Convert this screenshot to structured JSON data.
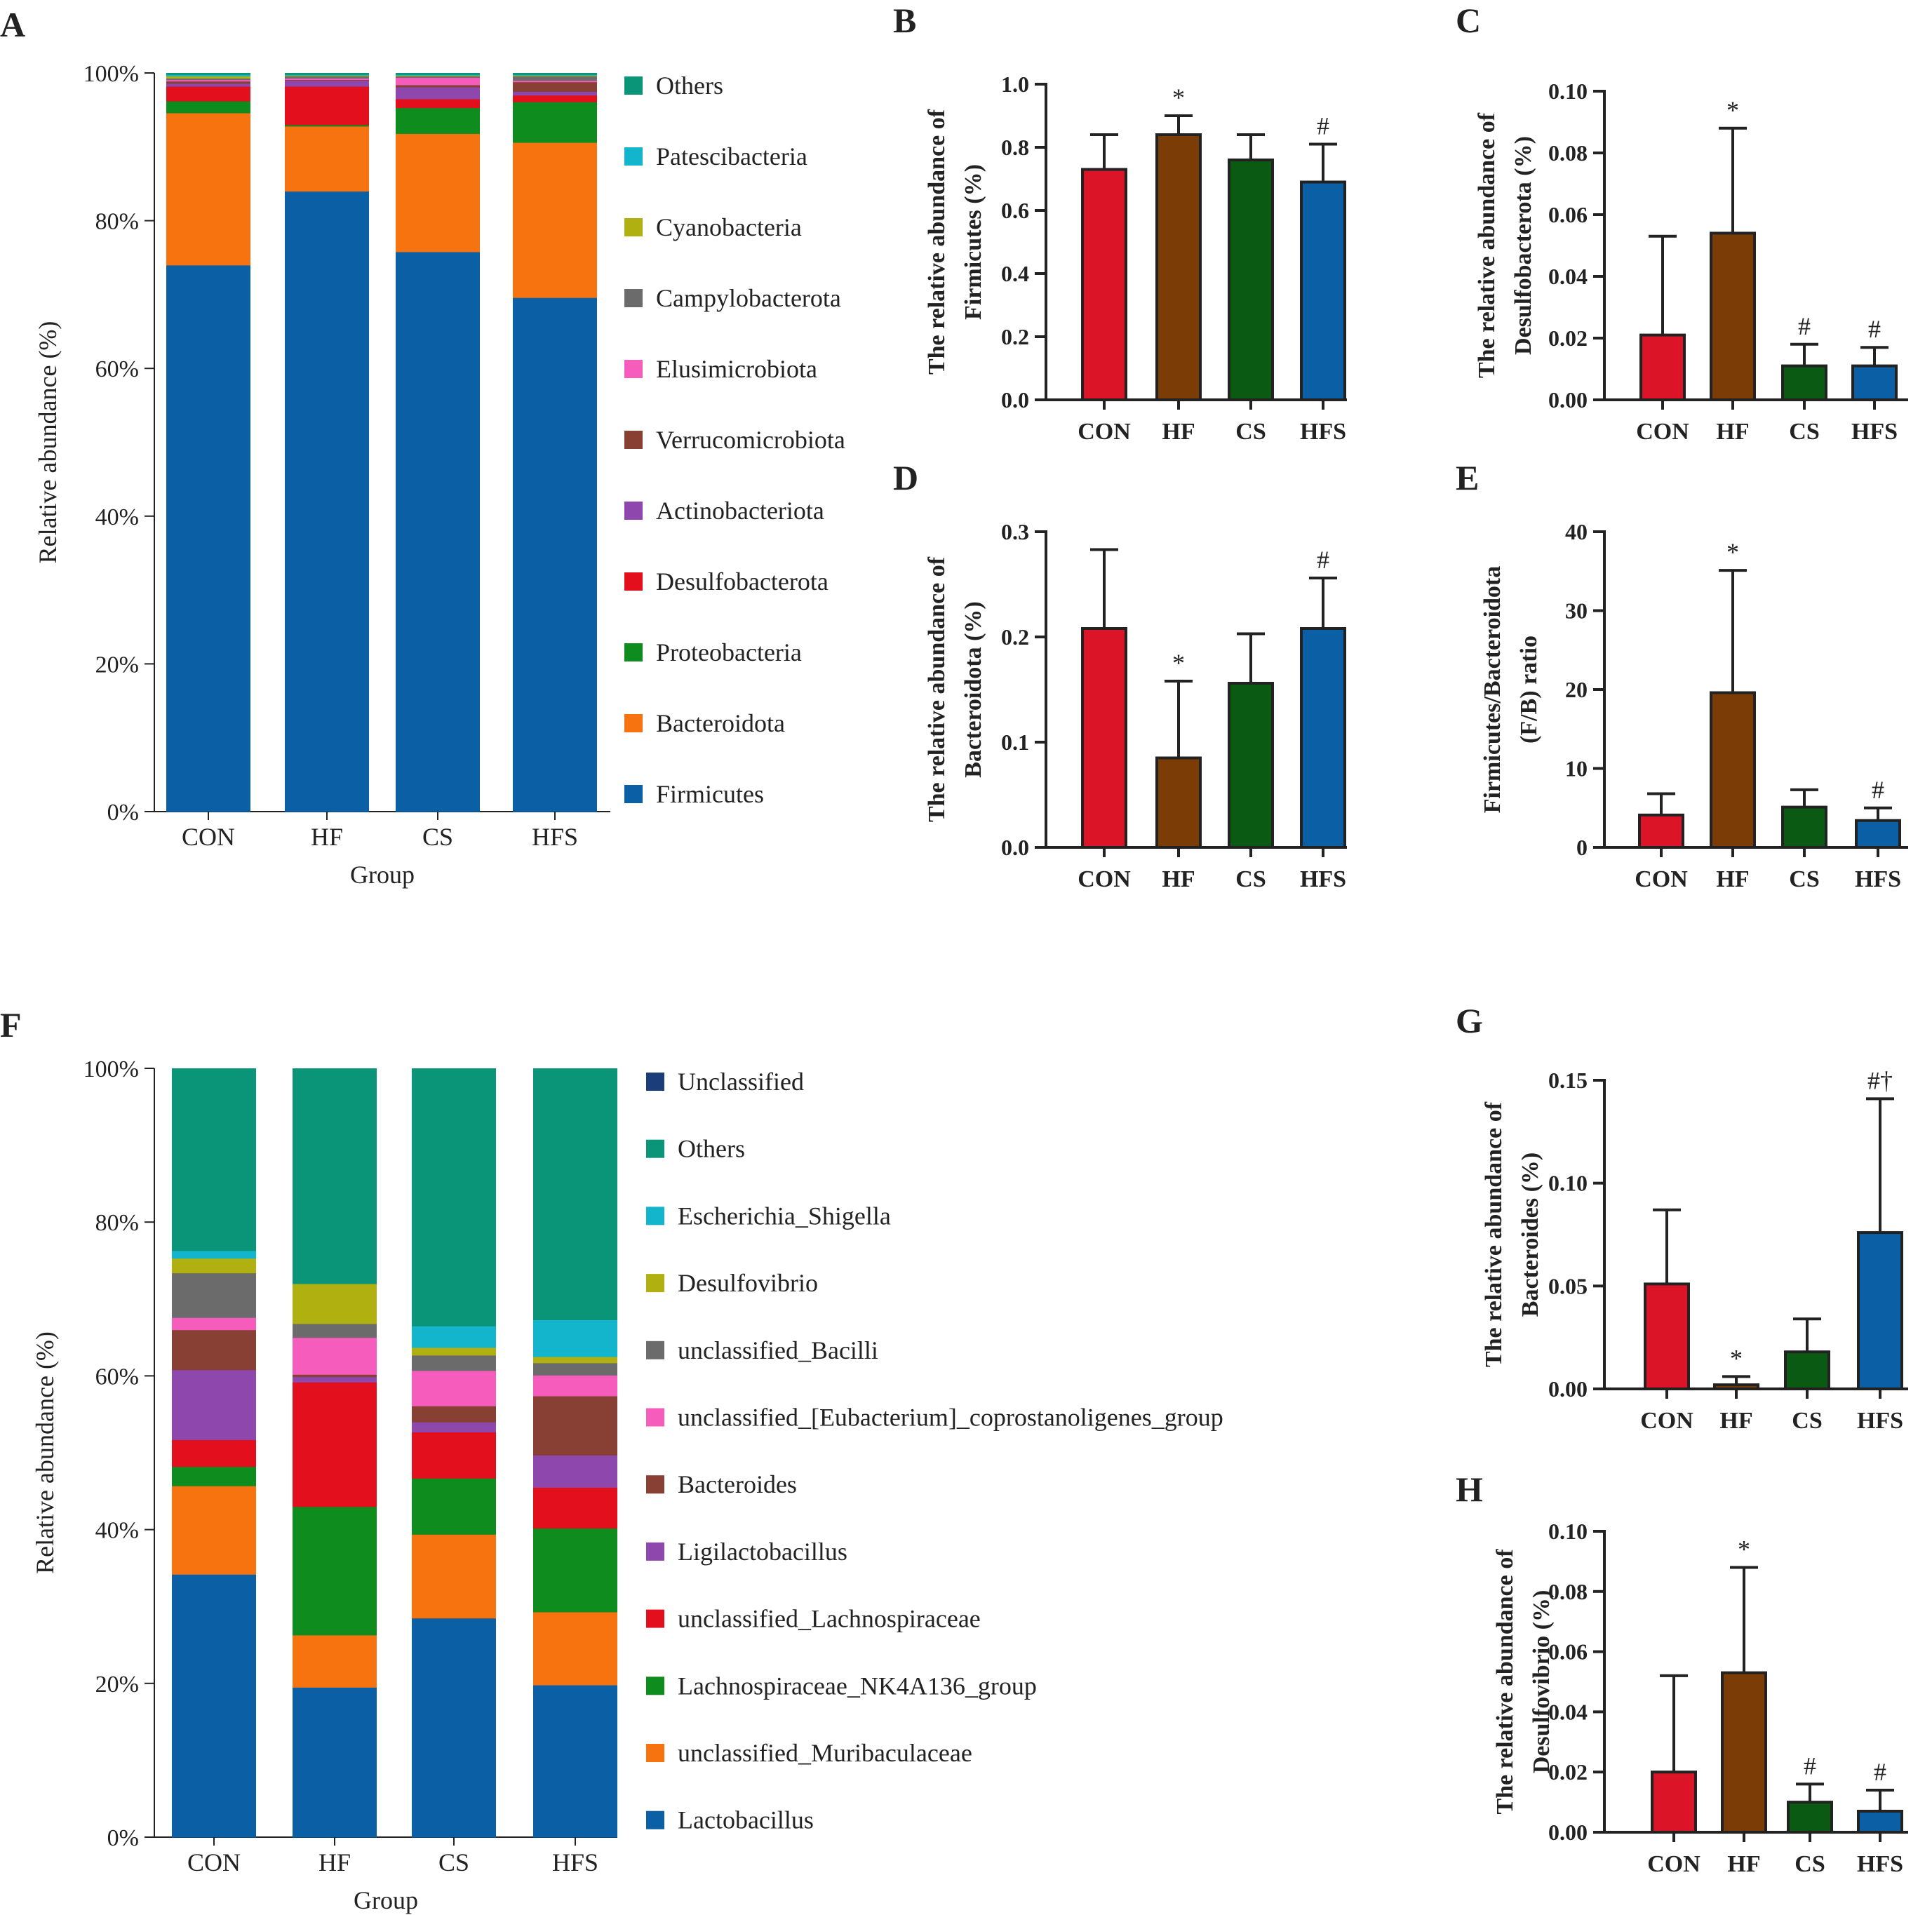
{
  "figure": {
    "colors": {
      "CON": "#dc1428",
      "HF": "#7b3c06",
      "CS": "#0a5a14",
      "HFS": "#0a5fa5",
      "axis": "#222222"
    }
  },
  "chart_data": [
    {
      "panel": "A",
      "type": "bar",
      "stacked": true,
      "categories": [
        "CON",
        "HF",
        "CS",
        "HFS"
      ],
      "xlabel": "Group",
      "ylabel": "Relative abundance (%)",
      "ylim": [
        0,
        100
      ],
      "yticks": [
        "0%",
        "20%",
        "40%",
        "60%",
        "80%",
        "100%"
      ],
      "legend_position": "right",
      "series": [
        {
          "name": "Firmicutes",
          "color": "#0a5fa5",
          "values": [
            74.0,
            84.0,
            75.8,
            69.6
          ]
        },
        {
          "name": "Bacteroidota",
          "color": "#f77310",
          "values": [
            20.6,
            8.8,
            16.0,
            21.0
          ]
        },
        {
          "name": "Proteobacteria",
          "color": "#0f8c1e",
          "values": [
            1.6,
            0.2,
            3.5,
            5.5
          ]
        },
        {
          "name": "Desulfobacterota",
          "color": "#e30f1c",
          "values": [
            2.0,
            5.2,
            1.2,
            0.9
          ]
        },
        {
          "name": "Actinobacteriota",
          "color": "#8e47ad",
          "values": [
            0.4,
            0.8,
            1.6,
            0.5
          ]
        },
        {
          "name": "Verrucomicrobiota",
          "color": "#874033",
          "values": [
            0.3,
            0.1,
            0.3,
            1.3
          ]
        },
        {
          "name": "Elusimicrobiota",
          "color": "#f55cbc",
          "values": [
            0.2,
            0.2,
            1.0,
            0.2
          ]
        },
        {
          "name": "Campylobacterota",
          "color": "#6b6b6b",
          "values": [
            0.2,
            0.3,
            0.2,
            0.6
          ]
        },
        {
          "name": "Cyanobacteria",
          "color": "#b0b010",
          "values": [
            0.3,
            0.1,
            0.1,
            0.1
          ]
        },
        {
          "name": "Patescibacteria",
          "color": "#13b5cc",
          "values": [
            0.2,
            0.1,
            0.1,
            0.1
          ]
        },
        {
          "name": "Others",
          "color": "#0a9478",
          "values": [
            0.2,
            0.2,
            0.2,
            0.2
          ]
        }
      ]
    },
    {
      "panel": "B",
      "type": "bar",
      "categories": [
        "CON",
        "HF",
        "CS",
        "HFS"
      ],
      "values": [
        0.73,
        0.84,
        0.76,
        0.69
      ],
      "errors": [
        0.11,
        0.06,
        0.08,
        0.12
      ],
      "annotations": [
        "",
        "*",
        "",
        "#"
      ],
      "ylabel_lines": [
        "The relative abundance of",
        "Firmicutes  (%)"
      ],
      "ylim": [
        0,
        1.0
      ],
      "yticks": [
        0,
        0.2,
        0.4,
        0.6,
        0.8,
        1.0
      ],
      "ytick_labels": [
        "0.0",
        "0.2",
        "0.4",
        "0.6",
        "0.8",
        "1.0"
      ]
    },
    {
      "panel": "C",
      "type": "bar",
      "categories": [
        "CON",
        "HF",
        "CS",
        "HFS"
      ],
      "values": [
        0.021,
        0.054,
        0.011,
        0.011
      ],
      "errors": [
        0.032,
        0.034,
        0.007,
        0.006
      ],
      "annotations": [
        "",
        "*",
        "#",
        "#"
      ],
      "ylabel_lines": [
        "The relative abundance of",
        "Desulfobacterota  (%)"
      ],
      "ylim": [
        0,
        0.1
      ],
      "yticks": [
        0,
        0.02,
        0.04,
        0.06,
        0.08,
        0.1
      ],
      "ytick_labels": [
        "0.00",
        "0.02",
        "0.04",
        "0.06",
        "0.08",
        "0.10"
      ]
    },
    {
      "panel": "D",
      "type": "bar",
      "categories": [
        "CON",
        "HF",
        "CS",
        "HFS"
      ],
      "values": [
        0.208,
        0.085,
        0.156,
        0.208
      ],
      "errors": [
        0.075,
        0.073,
        0.047,
        0.048
      ],
      "annotations": [
        "",
        "*",
        "",
        "#"
      ],
      "ylabel_lines": [
        "The relative abundance of",
        "Bacteroidota  (%)"
      ],
      "ylim": [
        0,
        0.3
      ],
      "yticks": [
        0,
        0.1,
        0.2,
        0.3
      ],
      "ytick_labels": [
        "0.0",
        "0.1",
        "0.2",
        "0.3"
      ]
    },
    {
      "panel": "E",
      "type": "bar",
      "categories": [
        "CON",
        "HF",
        "CS",
        "HFS"
      ],
      "values": [
        4.1,
        19.6,
        5.1,
        3.4
      ],
      "errors": [
        2.7,
        15.5,
        2.2,
        1.6
      ],
      "annotations": [
        "",
        "*",
        "",
        "#"
      ],
      "ylabel_lines": [
        "Firmicutes/Bacteroidota",
        "(F/B) ratio"
      ],
      "ylim": [
        0,
        40
      ],
      "yticks": [
        0,
        10,
        20,
        30,
        40
      ],
      "ytick_labels": [
        "0",
        "10",
        "20",
        "30",
        "40"
      ]
    },
    {
      "panel": "F",
      "type": "bar",
      "stacked": true,
      "categories": [
        "CON",
        "HF",
        "CS",
        "HFS"
      ],
      "xlabel": "Group",
      "ylabel": "Relative abundance (%)",
      "ylim": [
        0,
        100
      ],
      "yticks": [
        "0%",
        "20%",
        "40%",
        "60%",
        "80%",
        "100%"
      ],
      "legend_position": "right",
      "series": [
        {
          "name": "Lactobacillus",
          "color": "#0a5fa5",
          "values": [
            34.2,
            19.5,
            28.5,
            19.8
          ]
        },
        {
          "name": "unclassified_Muribaculaceae",
          "color": "#f77310",
          "values": [
            11.5,
            6.8,
            10.9,
            9.5
          ]
        },
        {
          "name": "Lachnospiraceae_NK4A136_group",
          "color": "#0f8c1e",
          "values": [
            2.5,
            16.7,
            7.3,
            10.9
          ]
        },
        {
          "name": "unclassified_Lachnospiraceae",
          "color": "#e30f1c",
          "values": [
            3.5,
            16.2,
            6.0,
            5.3
          ]
        },
        {
          "name": "Ligilactobacillus",
          "color": "#8e47ad",
          "values": [
            9.1,
            0.7,
            1.3,
            4.2
          ]
        },
        {
          "name": "Bacteroides",
          "color": "#874033",
          "values": [
            5.2,
            0.3,
            2.1,
            7.7
          ]
        },
        {
          "name": "unclassified_[Eubacterium]_coprostanoligenes_group",
          "color": "#f55cbc",
          "values": [
            1.6,
            4.8,
            4.6,
            2.7
          ]
        },
        {
          "name": "unclassified_Bacilli",
          "color": "#6b6b6b",
          "values": [
            5.8,
            1.8,
            2.0,
            1.6
          ]
        },
        {
          "name": "Desulfovibrio",
          "color": "#b0b010",
          "values": [
            1.9,
            5.2,
            1.0,
            0.8
          ]
        },
        {
          "name": "Escherichia_Shigella",
          "color": "#13b5cc",
          "values": [
            1.0,
            0.0,
            2.8,
            4.8
          ]
        },
        {
          "name": "Others",
          "color": "#0a9478",
          "values": [
            23.7,
            28.0,
            33.5,
            32.7
          ]
        },
        {
          "name": "Unclassified",
          "color": "#1b3d7a",
          "values": [
            0.0,
            0.0,
            0.0,
            0.0
          ]
        }
      ]
    },
    {
      "panel": "G",
      "type": "bar",
      "categories": [
        "CON",
        "HF",
        "CS",
        "HFS"
      ],
      "values": [
        0.051,
        0.002,
        0.018,
        0.076
      ],
      "errors": [
        0.036,
        0.004,
        0.016,
        0.065
      ],
      "annotations": [
        "",
        "*",
        "",
        "#†"
      ],
      "ylabel_lines": [
        "The relative abundance of",
        "Bacteroides (%)"
      ],
      "ylim": [
        0,
        0.15
      ],
      "yticks": [
        0,
        0.05,
        0.1,
        0.15
      ],
      "ytick_labels": [
        "0.00",
        "0.05",
        "0.10",
        "0.15"
      ]
    },
    {
      "panel": "H",
      "type": "bar",
      "categories": [
        "CON",
        "HF",
        "CS",
        "HFS"
      ],
      "values": [
        0.02,
        0.053,
        0.01,
        0.007
      ],
      "errors": [
        0.032,
        0.035,
        0.006,
        0.007
      ],
      "annotations": [
        "",
        "*",
        "#",
        "#"
      ],
      "ylabel_lines": [
        "The relative abundance of",
        "Desulfovibrio (%)"
      ],
      "ylim": [
        0,
        0.1
      ],
      "yticks": [
        0,
        0.02,
        0.04,
        0.06,
        0.08,
        0.1
      ],
      "ytick_labels": [
        "0.00",
        "0.02",
        "0.04",
        "0.06",
        "0.08",
        "0.10"
      ]
    }
  ]
}
